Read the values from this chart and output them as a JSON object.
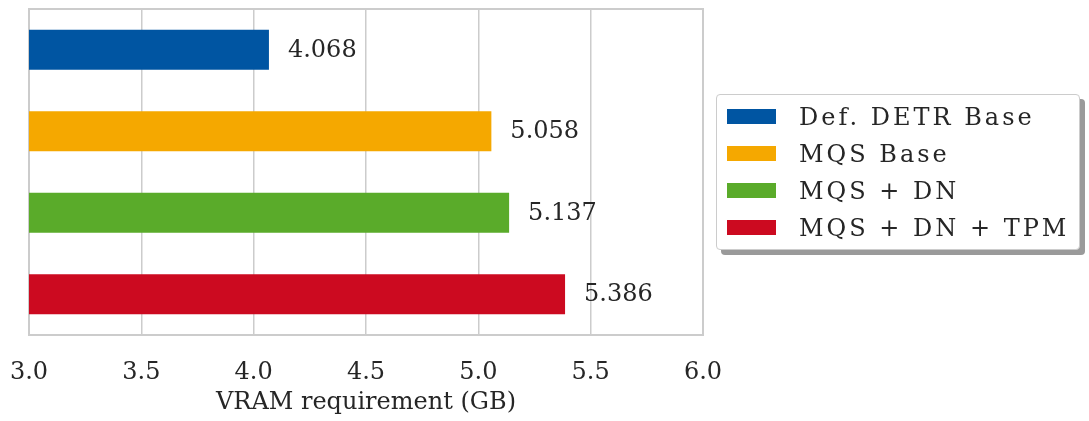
{
  "chart_data": {
    "type": "bar",
    "orientation": "horizontal",
    "categories": [
      null,
      null,
      null,
      null
    ],
    "series": [
      {
        "name": "Def. DETR Base",
        "color": "#0055a2",
        "values": [
          4.068,
          null,
          null,
          null
        ]
      },
      {
        "name": "MQS Base",
        "color": "#f5a800",
        "values": [
          null,
          5.058,
          null,
          null
        ]
      },
      {
        "name": "MQS + DN",
        "color": "#5aab2a",
        "values": [
          null,
          null,
          5.137,
          null
        ]
      },
      {
        "name": "MQS + DN + TPM",
        "color": "#cc0a20",
        "values": [
          null,
          null,
          null,
          5.386
        ]
      }
    ],
    "xlim": [
      3,
      6
    ],
    "xticks": [
      {
        "value": 3,
        "label": "3.0"
      },
      3.5,
      {
        "value": 4,
        "label": "4.0"
      },
      4.5,
      {
        "value": 5,
        "label": "5.0"
      },
      5.5,
      {
        "value": 6,
        "label": "6.0"
      }
    ],
    "xlabel": "VRAM requirement (GB)",
    "grid": "x",
    "legend": "right",
    "data_labels": true
  }
}
